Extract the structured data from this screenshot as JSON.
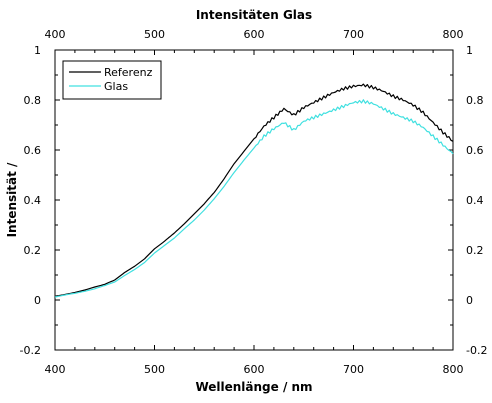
{
  "chart_data": {
    "type": "line",
    "title": "Intensitäten Glas",
    "xlabel": "Wellenlänge / nm",
    "ylabel": "Intensität /",
    "xlim": [
      400,
      800
    ],
    "ylim": [
      -0.2,
      1
    ],
    "x_ticks": [
      "400",
      "500",
      "600",
      "700",
      "800"
    ],
    "y_ticks": [
      "-0.2",
      "0",
      "0.2",
      "0.4",
      "0.6",
      "0.8",
      "1"
    ],
    "grid": false,
    "legend_position": "top-left",
    "x": [
      400,
      410,
      420,
      430,
      440,
      450,
      460,
      470,
      480,
      490,
      500,
      510,
      520,
      530,
      540,
      550,
      560,
      570,
      580,
      590,
      600,
      610,
      620,
      630,
      640,
      650,
      660,
      670,
      680,
      690,
      700,
      710,
      720,
      730,
      740,
      750,
      760,
      770,
      780,
      790,
      800
    ],
    "series": [
      {
        "name": "Referenz",
        "color": "#000000",
        "values": [
          0.015,
          0.022,
          0.03,
          0.04,
          0.052,
          0.063,
          0.08,
          0.11,
          0.135,
          0.165,
          0.205,
          0.235,
          0.268,
          0.305,
          0.345,
          0.385,
          0.43,
          0.485,
          0.545,
          0.595,
          0.645,
          0.695,
          0.73,
          0.765,
          0.74,
          0.77,
          0.79,
          0.81,
          0.83,
          0.845,
          0.855,
          0.86,
          0.85,
          0.835,
          0.815,
          0.8,
          0.78,
          0.75,
          0.71,
          0.67,
          0.635
        ]
      },
      {
        "name": "Glas",
        "color": "#40e0e0",
        "values": [
          0.012,
          0.02,
          0.027,
          0.035,
          0.045,
          0.058,
          0.072,
          0.098,
          0.122,
          0.15,
          0.188,
          0.218,
          0.248,
          0.285,
          0.32,
          0.36,
          0.405,
          0.455,
          0.51,
          0.56,
          0.608,
          0.655,
          0.685,
          0.71,
          0.68,
          0.715,
          0.73,
          0.745,
          0.76,
          0.775,
          0.79,
          0.795,
          0.785,
          0.765,
          0.745,
          0.73,
          0.715,
          0.69,
          0.655,
          0.62,
          0.585
        ]
      }
    ]
  }
}
